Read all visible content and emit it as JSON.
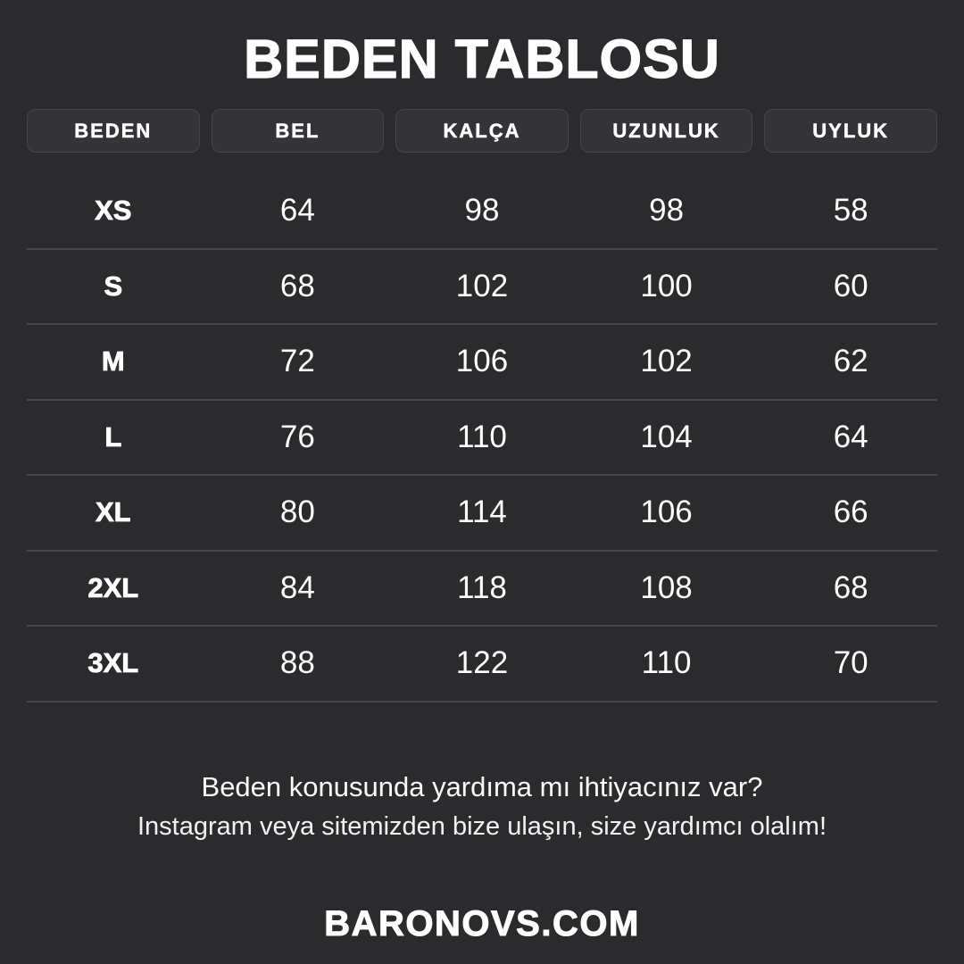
{
  "page": {
    "background_color": "#2b2b2d",
    "chip_color": "#333338",
    "divider_color": "#46474b",
    "text_color": "#ffffff"
  },
  "title": "BEDEN TABLOSU",
  "table": {
    "columns": [
      "BEDEN",
      "BEL",
      "KALÇA",
      "UZUNLUK",
      "UYLUK"
    ],
    "rows": [
      [
        "XS",
        "64",
        "98",
        "98",
        "58"
      ],
      [
        "S",
        "68",
        "102",
        "100",
        "60"
      ],
      [
        "M",
        "72",
        "106",
        "102",
        "62"
      ],
      [
        "L",
        "76",
        "110",
        "104",
        "64"
      ],
      [
        "XL",
        "80",
        "114",
        "106",
        "66"
      ],
      [
        "2XL",
        "84",
        "118",
        "108",
        "68"
      ],
      [
        "3XL",
        "88",
        "122",
        "110",
        "70"
      ]
    ]
  },
  "chart_data": {
    "type": "table",
    "title": "BEDEN TABLOSU",
    "categories": [
      "XS",
      "S",
      "M",
      "L",
      "XL",
      "2XL",
      "3XL"
    ],
    "series": [
      {
        "name": "BEL",
        "values": [
          64,
          68,
          72,
          76,
          80,
          84,
          88
        ]
      },
      {
        "name": "KALÇA",
        "values": [
          98,
          102,
          106,
          110,
          114,
          118,
          122
        ]
      },
      {
        "name": "UZUNLUK",
        "values": [
          98,
          100,
          102,
          104,
          106,
          108,
          110
        ]
      },
      {
        "name": "UYLUK",
        "values": [
          58,
          60,
          62,
          64,
          66,
          68,
          70
        ]
      }
    ]
  },
  "help": {
    "line1": "Beden konusunda yardıma mı ihtiyacınız var?",
    "line2": "Instagram veya sitemizden bize ulaşın, size yardımcı olalım!"
  },
  "brand": "BARONOVS.COM"
}
